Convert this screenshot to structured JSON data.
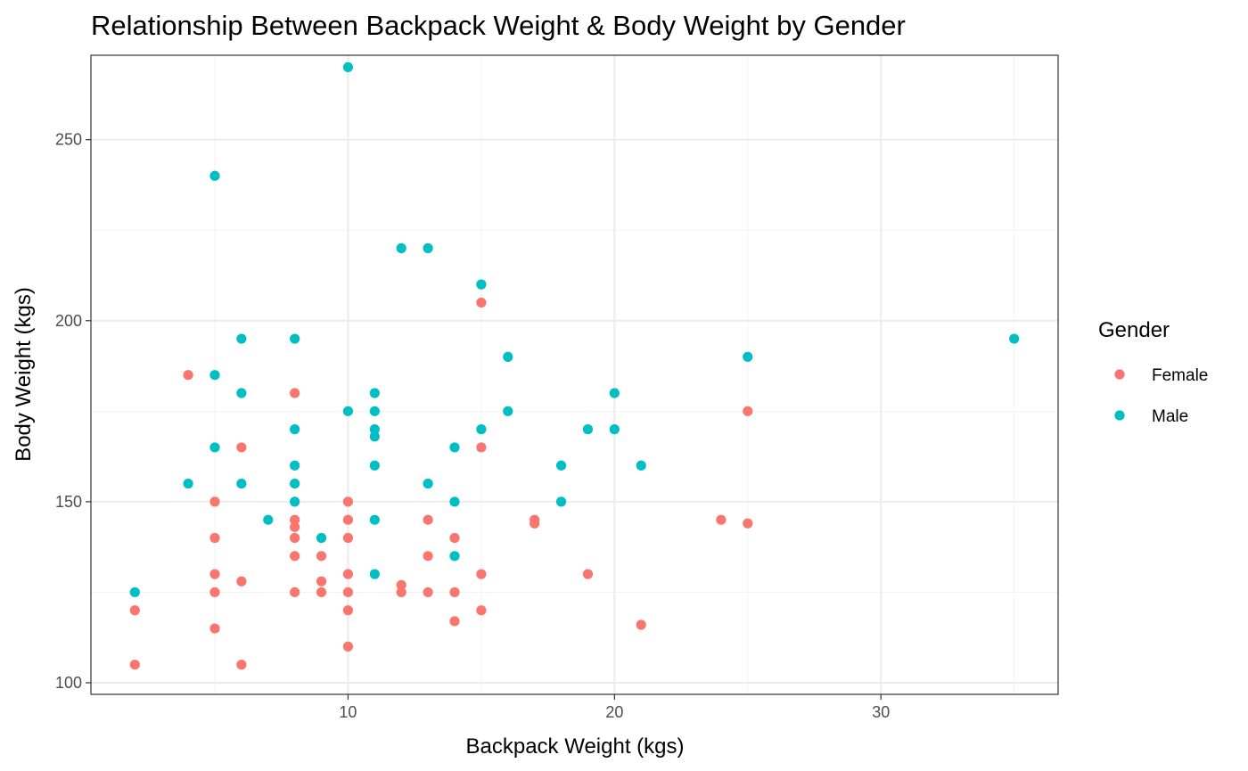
{
  "chart_data": {
    "type": "scatter",
    "title": "Relationship Between Backpack Weight & Body Weight by Gender",
    "xlabel": "Backpack Weight (kgs)",
    "ylabel": "Body Weight (kgs)",
    "xlim": [
      0.35,
      36.65
    ],
    "ylim": [
      96.8,
      273.3
    ],
    "x_ticks": [
      10,
      20,
      30
    ],
    "y_ticks": [
      100,
      150,
      200,
      250
    ],
    "grid": true,
    "legend": {
      "title": "Gender",
      "position": "right"
    },
    "series": [
      {
        "name": "Female",
        "color": "#F8766D",
        "points": [
          [
            2,
            105
          ],
          [
            2,
            120
          ],
          [
            4,
            185
          ],
          [
            5,
            150
          ],
          [
            5,
            140
          ],
          [
            5,
            130
          ],
          [
            5,
            125
          ],
          [
            5,
            115
          ],
          [
            6,
            165
          ],
          [
            6,
            128
          ],
          [
            6,
            105
          ],
          [
            8,
            180
          ],
          [
            8,
            145
          ],
          [
            8,
            143
          ],
          [
            8,
            140
          ],
          [
            8,
            135
          ],
          [
            8,
            125
          ],
          [
            9,
            135
          ],
          [
            9,
            128
          ],
          [
            9,
            125
          ],
          [
            10,
            150
          ],
          [
            10,
            145
          ],
          [
            10,
            140
          ],
          [
            10,
            130
          ],
          [
            10,
            125
          ],
          [
            10,
            120
          ],
          [
            10,
            110
          ],
          [
            12,
            127
          ],
          [
            12,
            125
          ],
          [
            13,
            145
          ],
          [
            13,
            135
          ],
          [
            13,
            125
          ],
          [
            14,
            140
          ],
          [
            14,
            125
          ],
          [
            14,
            117
          ],
          [
            15,
            205
          ],
          [
            15,
            165
          ],
          [
            15,
            130
          ],
          [
            15,
            120
          ],
          [
            17,
            145
          ],
          [
            17,
            144
          ],
          [
            19,
            130
          ],
          [
            21,
            116
          ],
          [
            24,
            145
          ],
          [
            25,
            175
          ],
          [
            25,
            144
          ]
        ]
      },
      {
        "name": "Male",
        "color": "#00BFC4",
        "points": [
          [
            2,
            125
          ],
          [
            4,
            155
          ],
          [
            5,
            240
          ],
          [
            5,
            185
          ],
          [
            5,
            165
          ],
          [
            6,
            195
          ],
          [
            6,
            180
          ],
          [
            6,
            155
          ],
          [
            7,
            145
          ],
          [
            8,
            195
          ],
          [
            8,
            170
          ],
          [
            8,
            160
          ],
          [
            8,
            155
          ],
          [
            8,
            150
          ],
          [
            9,
            140
          ],
          [
            10,
            270
          ],
          [
            10,
            175
          ],
          [
            11,
            180
          ],
          [
            11,
            175
          ],
          [
            11,
            170
          ],
          [
            11,
            168
          ],
          [
            11,
            160
          ],
          [
            11,
            145
          ],
          [
            11,
            130
          ],
          [
            12,
            220
          ],
          [
            13,
            220
          ],
          [
            13,
            155
          ],
          [
            14,
            165
          ],
          [
            14,
            150
          ],
          [
            14,
            135
          ],
          [
            15,
            210
          ],
          [
            15,
            170
          ],
          [
            16,
            190
          ],
          [
            16,
            175
          ],
          [
            18,
            160
          ],
          [
            18,
            150
          ],
          [
            19,
            170
          ],
          [
            20,
            180
          ],
          [
            20,
            170
          ],
          [
            21,
            160
          ],
          [
            25,
            190
          ],
          [
            35,
            195
          ]
        ]
      }
    ]
  }
}
